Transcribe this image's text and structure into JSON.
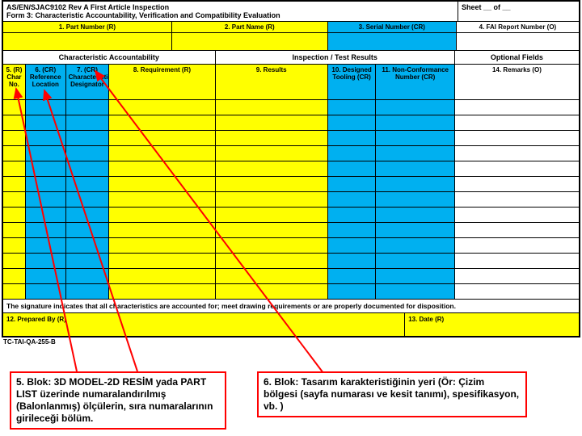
{
  "header": {
    "title_line1": "AS/EN/SJAC9102 Rev A First Article Inspection",
    "title_line2": "Form 3: Characteristic Accountability, Verification and Compatibility Evaluation",
    "sheet_label": "Sheet __ of __"
  },
  "top_row": {
    "c1": "1. Part Number    (R)",
    "c2": "2. Part Name    (R)",
    "c3": "3. Serial Number   (CR)",
    "c4": "4. FAI Report Number   (O)"
  },
  "section": {
    "s1": "Characteristic Accountability",
    "s2": "Inspection / Test Results",
    "s3": "Optional Fields"
  },
  "cols": {
    "c5": "5. (R) Char No.",
    "c6": "6. (CR) Reference Location",
    "c7": "7. (CR) Characteristic Designator",
    "c8": "8. Requirement    (R)",
    "c9": "9. Results",
    "c10": "10. Designed Tooling (CR)",
    "c11": "11. Non-Conformance Number (CR)",
    "c14": "14. Remarks        (O)"
  },
  "signature": "The signature indicates that all characteristics are accounted for; meet drawing requirements or are properly documented for disposition.",
  "footer": {
    "prepared": "12. Prepared By   (R)",
    "date": "13. Date    (R)"
  },
  "docref": "TC-TAI-QA-255-B",
  "annotations": {
    "a5": "5. Blok:  3D MODEL-2D RESİM yada PART LIST üzerinde numaralandırılmış (Balonlanmış) ölçülerin, sıra numaralarının girileceği bölüm.",
    "a6": "6. Blok: Tasarım karakteristiğinin yeri (Ör: Çizim bölgesi (sayfa numarası ve kesit tanımı), spesifikasyon, vb. )"
  },
  "colors": {
    "yellow": "#ffff00",
    "blue": "#00b0f0",
    "arrow": "#ff0000",
    "border": "#000000"
  },
  "data_row_count": 13
}
